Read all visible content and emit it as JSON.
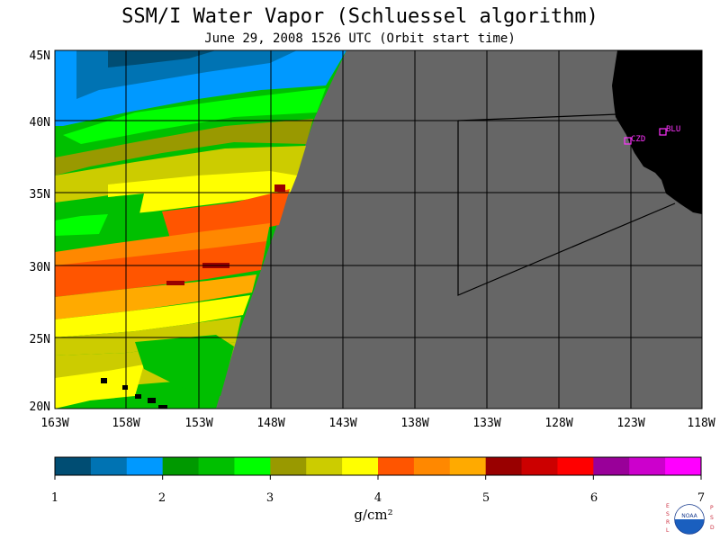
{
  "title": "SSM/I Water Vapor (Schluessel algorithm)",
  "subtitle": "June 29, 2008  1526 UTC  (Orbit start time)",
  "map": {
    "lon_labels": [
      "163W",
      "158W",
      "153W",
      "148W",
      "143W",
      "138W",
      "133W",
      "128W",
      "123W",
      "118W"
    ],
    "lat_labels": [
      "45N",
      "40N",
      "35N",
      "30N",
      "25N",
      "20N"
    ],
    "stations": [
      {
        "code": "CZD",
        "color": "#ff33ff"
      },
      {
        "code": "BLU",
        "color": "#ff33ff"
      }
    ],
    "land_color": "#000000",
    "no_data_color": "#666666"
  },
  "colorbar": {
    "ticks": [
      "1",
      "2",
      "3",
      "4",
      "5",
      "6",
      "7"
    ],
    "colors": [
      "#004d73",
      "#0073b3",
      "#0099ff",
      "#009900",
      "#00bf00",
      "#00ff00",
      "#999900",
      "#cccc00",
      "#ffff00",
      "#ff5500",
      "#ff8800",
      "#ffaa00",
      "#990000",
      "#cc0000",
      "#ff0000",
      "#990099",
      "#cc00cc",
      "#ff00ff"
    ],
    "unit": "g/cm²"
  },
  "logo": {
    "left_letters": [
      "E",
      "S",
      "R",
      "L"
    ],
    "right_letters": [
      "P",
      "S",
      "D"
    ],
    "center": "NOAA"
  }
}
